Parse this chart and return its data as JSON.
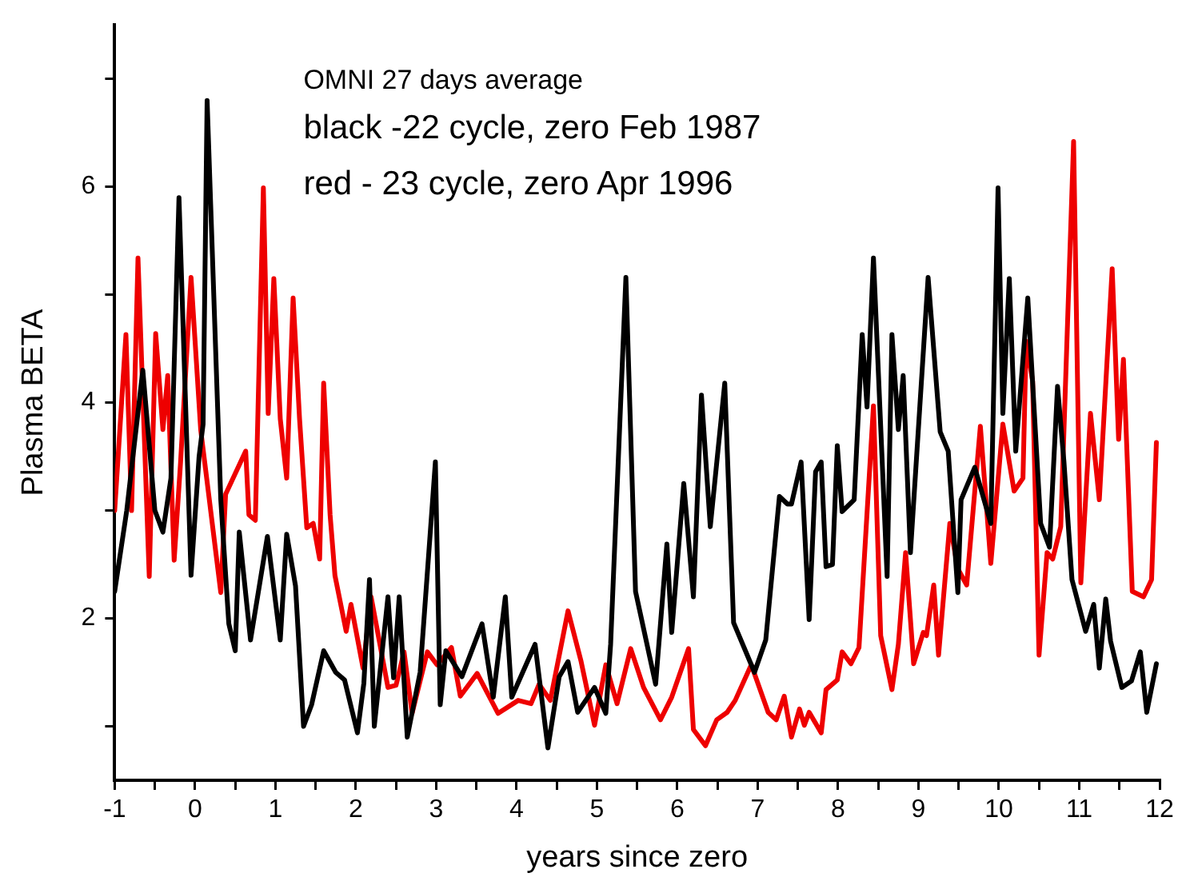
{
  "chart_data": {
    "type": "line",
    "xlabel": "years since zero",
    "ylabel": "Plasma BETA",
    "annotations": [
      "OMNI 27 days average",
      "black -22 cycle, zero Feb 1987",
      "red - 23 cycle, zero Apr 1996"
    ],
    "xlim": [
      -1,
      12
    ],
    "xticks": [
      -1,
      {
        "value": -0.5,
        "label": null
      },
      0,
      {
        "value": 0.5,
        "label": null
      },
      1,
      {
        "value": 1.5,
        "label": null
      },
      2,
      {
        "value": 2.5,
        "label": null
      },
      3,
      {
        "value": 3.5,
        "label": null
      },
      4,
      {
        "value": 4.5,
        "label": null
      },
      5,
      {
        "value": 5.5,
        "label": null
      },
      6,
      {
        "value": 6.5,
        "label": null
      },
      7,
      {
        "value": 7.5,
        "label": null
      },
      8,
      {
        "value": 8.5,
        "label": null
      },
      9,
      {
        "value": 9.5,
        "label": null
      },
      10,
      {
        "value": 10.5,
        "label": null
      },
      11,
      {
        "value": 11.5,
        "label": null
      },
      12
    ],
    "ylim": [
      0.5,
      7.5
    ],
    "yticks": [
      {
        "value": 1,
        "label": null
      },
      2,
      {
        "value": 3,
        "label": null
      },
      4,
      {
        "value": 5,
        "label": null
      },
      6,
      {
        "value": 7,
        "label": null
      }
    ],
    "grid": false,
    "legend": false,
    "marker": "none",
    "line_style": "solid",
    "series": [
      {
        "color": "#000000",
        "x": [
          -1,
          -0.85,
          -0.65,
          -0.5,
          -0.4,
          -0.3,
          -0.2,
          -0.05,
          0.05,
          0.1,
          0.15,
          0.32,
          0.42,
          0.5,
          0.55,
          0.69,
          0.9,
          1.06,
          1.14,
          1.25,
          1.35,
          1.45,
          1.6,
          1.75,
          1.86,
          2.02,
          2.1,
          2.17,
          2.23,
          2.4,
          2.47,
          2.54,
          2.64,
          2.8,
          2.99,
          3.05,
          3.12,
          3.32,
          3.57,
          3.71,
          3.86,
          3.94,
          4.23,
          4.39,
          4.53,
          4.64,
          4.76,
          4.97,
          5.11,
          5.17,
          5.36,
          5.48,
          5.73,
          5.87,
          5.93,
          6.08,
          6.2,
          6.3,
          6.41,
          6.59,
          6.7,
          6.96,
          7.1,
          7.27,
          7.37,
          7.42,
          7.54,
          7.64,
          7.72,
          7.79,
          7.85,
          7.93,
          7.99,
          8.05,
          8.2,
          8.3,
          8.36,
          8.44,
          8.61,
          8.67,
          8.75,
          8.81,
          8.9,
          9.12,
          9.27,
          9.37,
          9.49,
          9.53,
          9.7,
          9.9,
          9.99,
          10.05,
          10.13,
          10.21,
          10.36,
          10.52,
          10.63,
          10.73,
          10.81,
          10.91,
          11.08,
          11.18,
          11.25,
          11.33,
          11.39,
          11.53,
          11.65,
          11.76,
          11.84,
          11.96
        ],
        "values": [
          2.25,
          3.0,
          4.3,
          3.0,
          2.8,
          3.3,
          5.9,
          2.4,
          3.5,
          3.8,
          6.8,
          3.1,
          1.95,
          1.7,
          2.8,
          1.8,
          2.76,
          1.8,
          2.78,
          2.3,
          1.0,
          1.2,
          1.7,
          1.5,
          1.43,
          0.94,
          1.4,
          2.36,
          1.0,
          2.2,
          1.45,
          2.2,
          0.9,
          1.5,
          3.45,
          1.2,
          1.7,
          1.46,
          1.95,
          1.27,
          2.2,
          1.27,
          1.76,
          0.8,
          1.46,
          1.6,
          1.13,
          1.36,
          1.12,
          1.76,
          5.16,
          2.25,
          1.39,
          2.69,
          1.87,
          3.25,
          2.2,
          4.07,
          2.85,
          4.18,
          1.96,
          1.5,
          1.8,
          3.13,
          3.06,
          3.06,
          3.45,
          1.99,
          3.36,
          3.45,
          2.48,
          2.5,
          3.6,
          2.99,
          3.1,
          4.63,
          3.96,
          5.34,
          2.39,
          4.63,
          3.75,
          4.25,
          2.61,
          5.16,
          3.73,
          3.55,
          2.24,
          3.1,
          3.4,
          2.88,
          5.99,
          3.9,
          5.15,
          3.55,
          4.97,
          2.88,
          2.66,
          4.15,
          3.45,
          2.36,
          1.88,
          2.13,
          1.54,
          2.18,
          1.79,
          1.36,
          1.42,
          1.69,
          1.13,
          1.58
        ]
      },
      {
        "color": "#ee0000",
        "x": [
          -1,
          -0.86,
          -0.79,
          -0.71,
          -0.57,
          -0.49,
          -0.4,
          -0.34,
          -0.26,
          -0.18,
          -0.05,
          0.07,
          0.32,
          0.38,
          0.63,
          0.67,
          0.75,
          0.85,
          0.91,
          0.98,
          1.06,
          1.14,
          1.22,
          1.3,
          1.39,
          1.47,
          1.55,
          1.6,
          1.68,
          1.74,
          1.88,
          1.94,
          2.09,
          2.19,
          2.4,
          2.5,
          2.6,
          2.7,
          2.89,
          3.01,
          3.19,
          3.3,
          3.51,
          3.77,
          4.02,
          4.18,
          4.28,
          4.42,
          4.64,
          4.8,
          4.97,
          5.11,
          5.25,
          5.42,
          5.58,
          5.79,
          5.93,
          6.14,
          6.2,
          6.35,
          6.49,
          6.62,
          6.72,
          6.92,
          7.13,
          7.23,
          7.33,
          7.42,
          7.52,
          7.58,
          7.64,
          7.79,
          7.85,
          7.99,
          8.05,
          8.16,
          8.26,
          8.44,
          8.53,
          8.67,
          8.75,
          8.84,
          8.94,
          9.06,
          9.1,
          9.19,
          9.25,
          9.39,
          9.49,
          9.6,
          9.77,
          9.9,
          10.05,
          10.19,
          10.3,
          10.34,
          10.42,
          10.5,
          10.6,
          10.67,
          10.77,
          10.93,
          11.02,
          11.14,
          11.25,
          11.41,
          11.49,
          11.55,
          11.66,
          11.8,
          11.9,
          11.96
        ],
        "values": [
          3.0,
          4.63,
          3.0,
          5.34,
          2.39,
          4.64,
          3.75,
          4.25,
          2.54,
          3.45,
          5.16,
          3.75,
          2.24,
          3.15,
          3.55,
          2.96,
          2.91,
          5.99,
          3.9,
          5.15,
          3.85,
          3.3,
          4.97,
          3.85,
          2.84,
          2.88,
          2.55,
          4.18,
          2.96,
          2.4,
          1.88,
          2.13,
          1.54,
          2.2,
          1.36,
          1.38,
          1.69,
          1.12,
          1.69,
          1.57,
          1.73,
          1.28,
          1.49,
          1.12,
          1.24,
          1.21,
          1.39,
          1.24,
          2.07,
          1.61,
          1.01,
          1.57,
          1.21,
          1.72,
          1.36,
          1.06,
          1.27,
          1.72,
          0.97,
          0.82,
          1.06,
          1.13,
          1.24,
          1.57,
          1.13,
          1.06,
          1.28,
          0.9,
          1.16,
          1.01,
          1.13,
          0.94,
          1.34,
          1.43,
          1.69,
          1.58,
          1.73,
          3.97,
          1.84,
          1.34,
          1.76,
          2.61,
          1.58,
          1.87,
          1.84,
          2.31,
          1.66,
          2.88,
          2.46,
          2.31,
          3.78,
          2.51,
          3.8,
          3.18,
          3.3,
          4.57,
          4.2,
          1.66,
          2.61,
          2.55,
          2.85,
          6.42,
          2.33,
          3.9,
          3.1,
          5.24,
          3.66,
          4.4,
          2.25,
          2.2,
          2.36,
          3.63
        ]
      }
    ]
  }
}
